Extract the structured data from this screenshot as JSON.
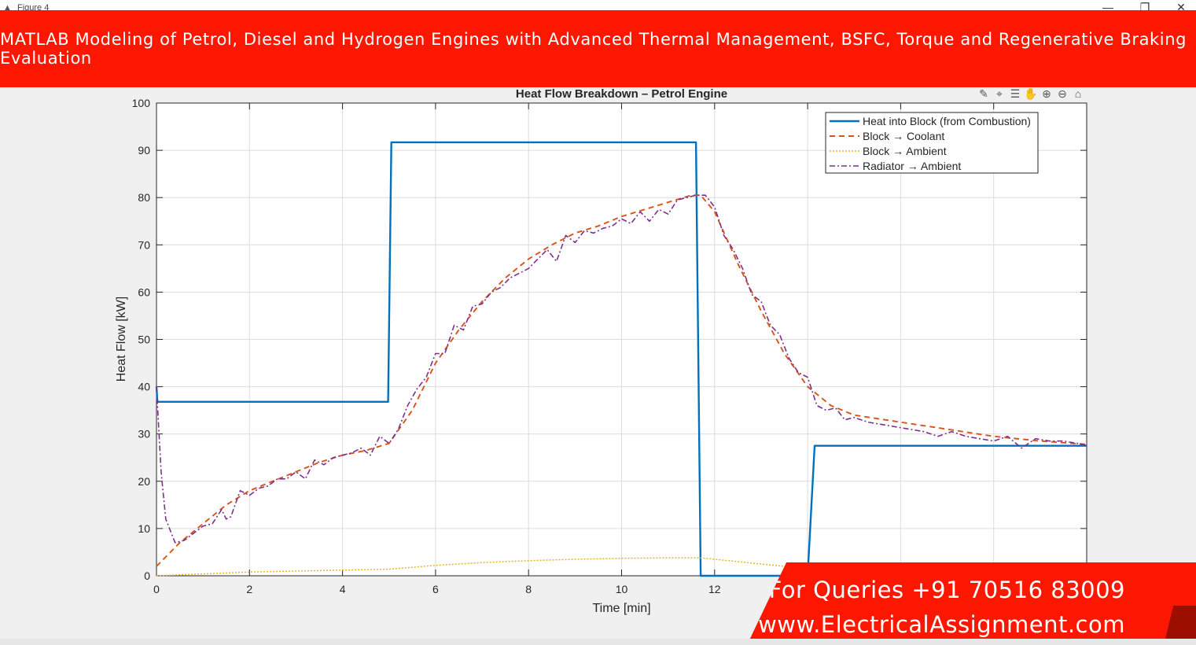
{
  "window": {
    "title": "Figure 4",
    "controls": {
      "minimize": "—",
      "restore": "❐",
      "close": "✕"
    }
  },
  "banner": {
    "text": "MATLAB Modeling of Petrol, Diesel and Hydrogen Engines with Advanced Thermal Management, BSFC, Torque and Regenerative Braking Evaluation"
  },
  "toolbar": {
    "icons": [
      "brush-icon",
      "data-tip-icon",
      "legend-icon",
      "pan-icon",
      "zoom-in-icon",
      "zoom-out-icon",
      "home-icon"
    ]
  },
  "contact": {
    "phone": "For Queries +91 70516 83009",
    "website": "www.ElectricalAssignment.com"
  },
  "chart_data": {
    "type": "line",
    "title": "Heat Flow Breakdown – Petrol Engine",
    "xlabel": "Time [min]",
    "ylabel": "Heat Flow [kW]",
    "xlim": [
      0,
      20
    ],
    "ylim": [
      0,
      100
    ],
    "xticks": [
      0,
      2,
      4,
      6,
      8,
      10,
      12
    ],
    "yticks": [
      0,
      10,
      20,
      30,
      40,
      50,
      60,
      70,
      80,
      90,
      100
    ],
    "grid": true,
    "legend_position": "top-right",
    "series": [
      {
        "name": "Heat into Block (from Combustion)",
        "color": "#0072bd",
        "style": "solid",
        "x": [
          0,
          0.02,
          4.98,
          5.05,
          11.6,
          11.7,
          14.0,
          14.15,
          20
        ],
        "y": [
          40,
          36.8,
          36.8,
          91.7,
          91.7,
          0,
          0,
          27.5,
          27.5
        ]
      },
      {
        "name": "Block → Coolant",
        "color": "#d95319",
        "style": "dashed",
        "x": [
          0,
          0.3,
          0.5,
          1,
          1.5,
          2,
          2.5,
          3,
          3.5,
          4,
          4.5,
          5,
          5.5,
          6,
          6.5,
          7,
          7.5,
          8,
          8.5,
          9,
          9.5,
          10,
          10.5,
          11,
          11.5,
          11.7,
          12,
          12.5,
          13,
          13.5,
          14,
          14.5,
          15,
          16,
          17,
          18,
          19,
          20
        ],
        "y": [
          2,
          5,
          7,
          11,
          15,
          18,
          20,
          22,
          24,
          25.5,
          26.5,
          28,
          35,
          45,
          52,
          58,
          63,
          67,
          70,
          72.5,
          74,
          76,
          77.5,
          79,
          80.5,
          80.5,
          77,
          66,
          56,
          47,
          40,
          36,
          34,
          32.5,
          31,
          29.5,
          28.5,
          27.8
        ]
      },
      {
        "name": "Block → Ambient",
        "color": "#edb120",
        "style": "dotted",
        "x": [
          0,
          2,
          4,
          5,
          6,
          7,
          8,
          9,
          10,
          11,
          11.7,
          12.5,
          13.5
        ],
        "y": [
          0,
          0.8,
          1.2,
          1.4,
          2.2,
          2.8,
          3.2,
          3.5,
          3.7,
          3.8,
          3.8,
          3,
          2
        ]
      },
      {
        "name": "Radiator → Ambient",
        "color": "#7e2f8e",
        "style": "dashdot",
        "x": [
          0,
          0.1,
          0.2,
          0.4,
          0.6,
          0.8,
          1.0,
          1.2,
          1.4,
          1.5,
          1.6,
          1.8,
          2.0,
          2.2,
          2.4,
          2.6,
          2.8,
          3.0,
          3.2,
          3.4,
          3.6,
          3.8,
          4.0,
          4.2,
          4.4,
          4.6,
          4.8,
          5.0,
          5.2,
          5.4,
          5.6,
          5.8,
          6.0,
          6.2,
          6.4,
          6.6,
          6.8,
          7.0,
          7.2,
          7.4,
          7.6,
          7.8,
          8.0,
          8.2,
          8.4,
          8.6,
          8.8,
          9.0,
          9.2,
          9.4,
          9.6,
          9.8,
          10.0,
          10.2,
          10.4,
          10.6,
          10.8,
          11.0,
          11.2,
          11.4,
          11.6,
          11.8,
          12.0,
          12.2,
          12.4,
          12.6,
          12.8,
          13.0,
          13.2,
          13.4,
          13.6,
          13.8,
          14.0,
          14.2,
          14.4,
          14.6,
          14.8,
          15.0,
          15.3,
          15.6,
          15.9,
          16.2,
          16.5,
          16.8,
          17.1,
          17.4,
          17.7,
          18.0,
          18.3,
          18.6,
          18.9,
          19.2,
          19.5,
          19.8,
          20.0
        ],
        "y": [
          40,
          22,
          12,
          7,
          7.5,
          9,
          10.5,
          11,
          14,
          12,
          12.5,
          18,
          17,
          18.5,
          19,
          20.5,
          20.5,
          22,
          20.5,
          24.5,
          23.5,
          25,
          25.5,
          26,
          27,
          25.5,
          29.5,
          28,
          31,
          36,
          39.5,
          42,
          47,
          47,
          53,
          52,
          57,
          57.5,
          60,
          61,
          63,
          64,
          65,
          67,
          69,
          66.5,
          72,
          70.5,
          73,
          72.5,
          73.5,
          74,
          75.5,
          74.5,
          77,
          75,
          77.5,
          76.5,
          79.5,
          80,
          80.5,
          80.5,
          78,
          72,
          69,
          65,
          59.5,
          58,
          53,
          51,
          46,
          43,
          42,
          36,
          35,
          35.5,
          33,
          33.5,
          32.5,
          32,
          31.5,
          31,
          30.5,
          29.5,
          30.5,
          29.5,
          29,
          28.5,
          29.5,
          27,
          29,
          28.5,
          28.5,
          28,
          27.6
        ]
      }
    ]
  }
}
